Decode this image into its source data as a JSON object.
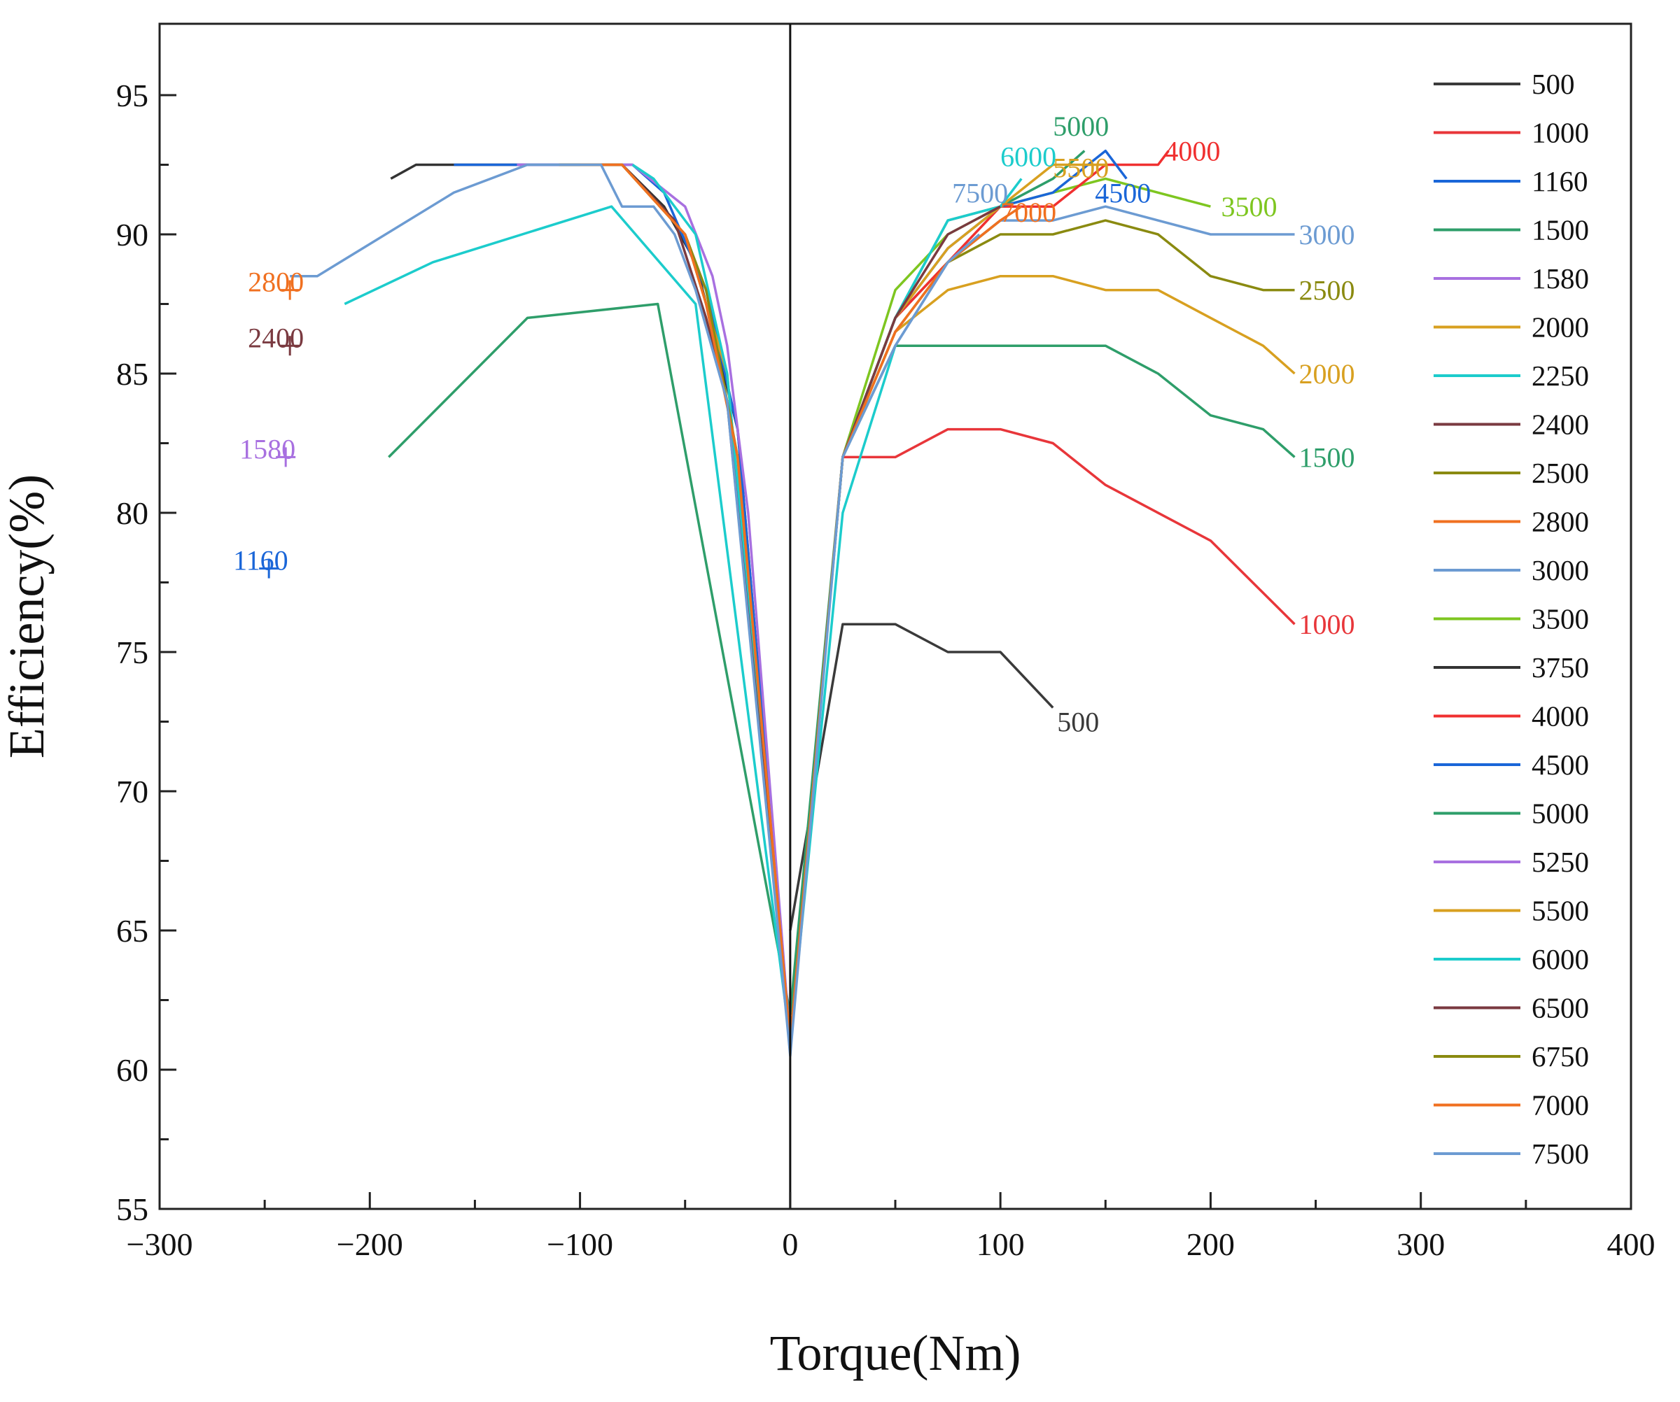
{
  "chart_data": {
    "type": "line",
    "title": "",
    "xlabel": "Torque(Nm)",
    "ylabel": "Efficiency(%)",
    "xlim": [
      -300,
      400
    ],
    "ylim": [
      55,
      97
    ],
    "xticks": [
      -300,
      -200,
      -100,
      0,
      100,
      200,
      300,
      400
    ],
    "yticks": [
      55,
      60,
      65,
      70,
      75,
      80,
      85,
      90,
      95
    ],
    "x_tick_labels": [
      "−300",
      "−200",
      "−100",
      "0",
      "100",
      "200",
      "300",
      "400"
    ],
    "y_tick_labels": [
      "55",
      "60",
      "65",
      "70",
      "75",
      "80",
      "85",
      "90",
      "95"
    ],
    "grid": false,
    "legend_position": "right",
    "series": [
      {
        "name": "500",
        "color": "#3a3a3a",
        "points": [
          [
            0,
            65
          ],
          [
            25,
            76
          ],
          [
            50,
            76
          ],
          [
            75,
            75
          ],
          [
            100,
            75
          ],
          [
            125,
            73
          ]
        ]
      },
      {
        "name": "1000",
        "color": "#e8363a",
        "points": [
          [
            25,
            82
          ],
          [
            50,
            82
          ],
          [
            75,
            83
          ],
          [
            100,
            83
          ],
          [
            125,
            82.5
          ],
          [
            150,
            81
          ],
          [
            200,
            79
          ],
          [
            240,
            76
          ]
        ]
      },
      {
        "name": "1160",
        "color": "#1a66d8",
        "points": [
          [
            -248,
            78
          ]
        ],
        "marker": "plus"
      },
      {
        "name": "1500",
        "color": "#2e9e6a",
        "points": [
          [
            -191,
            82
          ],
          [
            -125,
            87
          ],
          [
            -63,
            87.5
          ],
          [
            0,
            62
          ],
          [
            25,
            82
          ],
          [
            50,
            86
          ],
          [
            100,
            86
          ],
          [
            150,
            86
          ],
          [
            175,
            85
          ],
          [
            200,
            83.5
          ],
          [
            225,
            83
          ],
          [
            240,
            82
          ]
        ]
      },
      {
        "name": "1580",
        "color": "#a870e0",
        "points": [
          [
            -240,
            82
          ]
        ],
        "marker": "plus"
      },
      {
        "name": "2000",
        "color": "#d8a020",
        "points": [
          [
            0,
            61
          ],
          [
            25,
            82
          ],
          [
            50,
            86.5
          ],
          [
            75,
            88
          ],
          [
            100,
            88.5
          ],
          [
            125,
            88.5
          ],
          [
            150,
            88
          ],
          [
            175,
            88
          ],
          [
            200,
            87
          ],
          [
            225,
            86
          ],
          [
            240,
            85
          ]
        ]
      },
      {
        "name": "2250",
        "color": "#1ccccc",
        "points": [
          [
            -212,
            87.5
          ],
          [
            -170,
            89
          ],
          [
            -85,
            91
          ],
          [
            -45,
            87.5
          ],
          [
            0,
            61
          ],
          [
            25,
            80
          ],
          [
            50,
            86
          ]
        ]
      },
      {
        "name": "2400",
        "color": "#7a3a40",
        "points": [
          [
            -238,
            86
          ]
        ],
        "marker": "plus"
      },
      {
        "name": "2500",
        "color": "#8a8a10",
        "points": [
          [
            0,
            61
          ],
          [
            25,
            82
          ],
          [
            50,
            87
          ],
          [
            75,
            89
          ],
          [
            100,
            90
          ],
          [
            125,
            90
          ],
          [
            150,
            90.5
          ],
          [
            175,
            90
          ],
          [
            200,
            88.5
          ],
          [
            225,
            88
          ],
          [
            240,
            88
          ]
        ]
      },
      {
        "name": "2800",
        "color": "#f07020",
        "points": [
          [
            -238,
            88
          ]
        ],
        "marker": "plus"
      },
      {
        "name": "3000",
        "color": "#6c9bd2",
        "points": [
          [
            0,
            61
          ],
          [
            25,
            82
          ],
          [
            50,
            86
          ],
          [
            75,
            89
          ],
          [
            100,
            90.5
          ],
          [
            125,
            90.5
          ],
          [
            150,
            91
          ],
          [
            200,
            90
          ],
          [
            240,
            90
          ]
        ]
      },
      {
        "name": "3500",
        "color": "#7ec620",
        "points": [
          [
            0,
            61
          ],
          [
            25,
            82
          ],
          [
            50,
            88
          ],
          [
            75,
            90
          ],
          [
            100,
            91
          ],
          [
            125,
            91.5
          ],
          [
            150,
            92
          ],
          [
            200,
            91
          ]
        ]
      },
      {
        "name": "3750",
        "color": "#333333",
        "points": [
          [
            -190,
            92
          ],
          [
            -178,
            92.5
          ],
          [
            -95,
            92.5
          ],
          [
            -80,
            92.5
          ],
          [
            -60,
            91
          ],
          [
            -45,
            89
          ],
          [
            -35,
            86
          ],
          [
            -25,
            83
          ],
          [
            0,
            61
          ]
        ]
      },
      {
        "name": "4000",
        "color": "#f03030",
        "points": [
          [
            0,
            61
          ],
          [
            25,
            82
          ],
          [
            50,
            87
          ],
          [
            75,
            89
          ],
          [
            100,
            91
          ],
          [
            125,
            91
          ],
          [
            150,
            92.5
          ],
          [
            175,
            92.5
          ],
          [
            180,
            93
          ]
        ]
      },
      {
        "name": "4500",
        "color": "#1a66d8",
        "points": [
          [
            -160,
            92.5
          ],
          [
            -100,
            92.5
          ],
          [
            -75,
            92.5
          ],
          [
            -60,
            91.5
          ],
          [
            -40,
            88
          ],
          [
            -25,
            83
          ],
          [
            0,
            61
          ],
          [
            25,
            82
          ],
          [
            50,
            87
          ],
          [
            75,
            89.5
          ],
          [
            100,
            91
          ],
          [
            125,
            91.5
          ],
          [
            150,
            93
          ],
          [
            160,
            92
          ]
        ]
      },
      {
        "name": "5000",
        "color": "#2e9e6a",
        "points": [
          [
            0,
            61
          ],
          [
            25,
            82
          ],
          [
            50,
            87
          ],
          [
            75,
            90.5
          ],
          [
            100,
            91
          ],
          [
            125,
            92
          ],
          [
            140,
            93
          ]
        ]
      },
      {
        "name": "5250",
        "color": "#a870e0",
        "points": [
          [
            -130,
            92.5
          ],
          [
            -100,
            92.5
          ],
          [
            -75,
            92.5
          ],
          [
            -50,
            91
          ],
          [
            -37,
            88.5
          ],
          [
            -30,
            86
          ],
          [
            -20,
            80
          ],
          [
            0,
            61
          ]
        ]
      },
      {
        "name": "5500",
        "color": "#d8a020",
        "points": [
          [
            -100,
            92.5
          ],
          [
            -80,
            92.5
          ],
          [
            -50,
            90
          ],
          [
            -30,
            85
          ],
          [
            0,
            61
          ],
          [
            25,
            82
          ],
          [
            50,
            87
          ],
          [
            75,
            89.5
          ],
          [
            100,
            91
          ],
          [
            125,
            92.5
          ],
          [
            150,
            92.5
          ]
        ]
      },
      {
        "name": "6000",
        "color": "#1ccccc",
        "points": [
          [
            -75,
            92.5
          ],
          [
            -65,
            92
          ],
          [
            -45,
            90
          ],
          [
            -30,
            85
          ],
          [
            0,
            61
          ],
          [
            25,
            82
          ],
          [
            50,
            87
          ],
          [
            75,
            90.5
          ],
          [
            100,
            91
          ],
          [
            110,
            92
          ]
        ]
      },
      {
        "name": "6500",
        "color": "#7a3a40",
        "points": [
          [
            -110,
            92.5
          ],
          [
            -80,
            92.5
          ],
          [
            -55,
            90.5
          ],
          [
            -40,
            87
          ],
          [
            -30,
            84
          ],
          [
            0,
            61
          ],
          [
            25,
            82
          ],
          [
            50,
            87
          ],
          [
            75,
            90
          ],
          [
            100,
            91
          ]
        ]
      },
      {
        "name": "6750",
        "color": "#8a8a10",
        "points": [
          [
            -110,
            92.5
          ],
          [
            -80,
            92.5
          ],
          [
            -50,
            90
          ],
          [
            -40,
            88
          ],
          [
            -25,
            82
          ],
          [
            0,
            61
          ],
          [
            25,
            82
          ],
          [
            50,
            86.5
          ],
          [
            75,
            89
          ],
          [
            100,
            90.5
          ]
        ]
      },
      {
        "name": "7000",
        "color": "#f07020",
        "points": [
          [
            -100,
            92.5
          ],
          [
            -80,
            92.5
          ],
          [
            -50,
            90
          ],
          [
            -40,
            87.5
          ],
          [
            -25,
            82
          ],
          [
            0,
            61
          ],
          [
            25,
            82
          ],
          [
            50,
            86.5
          ],
          [
            75,
            89
          ],
          [
            100,
            90.5
          ],
          [
            110,
            91
          ]
        ]
      },
      {
        "name": "7500",
        "color": "#6c9bd2",
        "points": [
          [
            -238,
            88.5
          ],
          [
            -225,
            88.5
          ],
          [
            -160,
            91.5
          ],
          [
            -125,
            92.5
          ],
          [
            -100,
            92.5
          ],
          [
            -90,
            92.5
          ],
          [
            -80,
            91
          ],
          [
            -65,
            91
          ],
          [
            -55,
            90
          ],
          [
            -45,
            88
          ],
          [
            -30,
            84
          ],
          [
            0,
            60.5
          ],
          [
            25,
            82
          ],
          [
            50,
            86
          ],
          [
            75,
            89
          ],
          [
            90,
            90
          ]
        ]
      }
    ],
    "annotations": [
      {
        "text": "500",
        "x": 127,
        "y": 72.5,
        "color": "#3a3a3a"
      },
      {
        "text": "1000",
        "x": 242,
        "y": 76,
        "color": "#e8363a"
      },
      {
        "text": "1500",
        "x": 242,
        "y": 82,
        "color": "#2e9e6a"
      },
      {
        "text": "2000",
        "x": 242,
        "y": 85,
        "color": "#d8a020"
      },
      {
        "text": "2500",
        "x": 242,
        "y": 88,
        "color": "#8a8a10"
      },
      {
        "text": "3000",
        "x": 242,
        "y": 90,
        "color": "#6c9bd2"
      },
      {
        "text": "3500",
        "x": 205,
        "y": 91,
        "color": "#7ec620"
      },
      {
        "text": "4000",
        "x": 178,
        "y": 93,
        "color": "#f03030"
      },
      {
        "text": "4500",
        "x": 145,
        "y": 91.5,
        "color": "#1a66d8"
      },
      {
        "text": "5000",
        "x": 125,
        "y": 93.9,
        "color": "#2e9e6a"
      },
      {
        "text": "5500",
        "x": 125,
        "y": 92.4,
        "color": "#d8a020"
      },
      {
        "text": "6000",
        "x": 100,
        "y": 92.8,
        "color": "#1ccccc"
      },
      {
        "text": "7000",
        "x": 100,
        "y": 90.8,
        "color": "#f07020"
      },
      {
        "text": "7500",
        "x": 77,
        "y": 91.5,
        "color": "#6c9bd2"
      },
      {
        "text": "2800",
        "x": -258,
        "y": 88.3,
        "color": "#f07020"
      },
      {
        "text": "2400",
        "x": -258,
        "y": 86.3,
        "color": "#7a3a40"
      },
      {
        "text": "1580",
        "x": -262,
        "y": 82.3,
        "color": "#a870e0"
      },
      {
        "text": "1160",
        "x": -265,
        "y": 78.3,
        "color": "#1a66d8"
      }
    ]
  }
}
